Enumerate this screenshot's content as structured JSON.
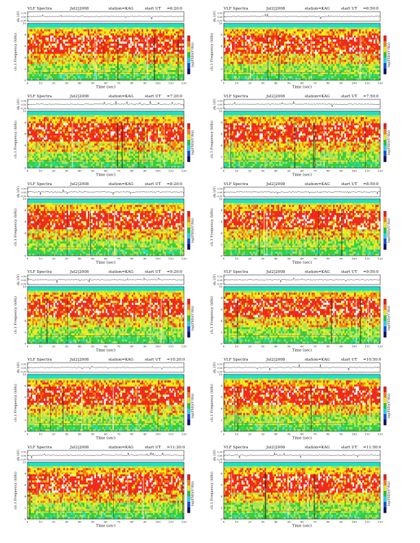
{
  "page": {
    "header_template": {
      "title": "VLF Spectra",
      "date": "Jul2|2008",
      "station": "station=KAG",
      "start_prefix": "start  UT"
    },
    "xlabel": "Time  (sec)",
    "ylabel_trace": "ch.1(V)",
    "ylabel_spec": "ch.1 Frequency (kHz)",
    "colorbar_label": "log(PSD)(V²/Hz)"
  },
  "palette": {
    "red": "#ee2a1e",
    "orange": "#f77f0f",
    "yellow": "#f3ec1a",
    "lightgreen": "#a6e35a",
    "green": "#37cf3d",
    "cyan": "#1fe0c6",
    "white": "#ffffff",
    "frame": "#222222",
    "trace": "#333333"
  },
  "chart_data": [
    {
      "type": "heatmap",
      "start_ut": "=6:20:0",
      "title": "VLF Spectra  Jul2|2008  station=KAG  start UT =6:20:0",
      "xlabel": "Time (sec)",
      "ylabel": "Frequency (kHz)",
      "xlim": [
        0,
        120
      ],
      "ylim": [
        0,
        10
      ],
      "x_ticks": [
        0,
        10,
        20,
        30,
        40,
        50,
        60,
        70,
        80,
        90,
        100,
        110,
        120
      ],
      "y_ticks": [
        0,
        2,
        4,
        6,
        8,
        10
      ],
      "trace": {
        "ylabel": "ch.1 (V)",
        "y_ticks": [
          "0.30",
          "0.00",
          "-0.30"
        ]
      },
      "colorbar": {
        "label": "log(PSD)(V²/Hz)",
        "colors": [
          "red",
          "orange",
          "yellow",
          "green",
          "cyan",
          "blue",
          "navy"
        ]
      }
    },
    {
      "type": "heatmap",
      "start_ut": "=6:50:0",
      "title": "VLF Spectra  Jul2|2008  station=KAG  start UT =6:50:0",
      "xlabel": "Time (sec)",
      "ylabel": "Frequency (kHz)",
      "xlim": [
        0,
        120
      ],
      "ylim": [
        0,
        10
      ],
      "x_ticks": [
        0,
        10,
        20,
        30,
        40,
        50,
        60,
        70,
        80,
        90,
        100,
        110,
        120
      ],
      "y_ticks": [
        0,
        2,
        4,
        6,
        8,
        10
      ],
      "trace": {
        "ylabel": "ch.1 (V)",
        "y_ticks": [
          "0.30",
          "0.00",
          "-0.30"
        ]
      },
      "colorbar": {
        "label": "log(PSD)(V²/Hz)",
        "colors": [
          "red",
          "orange",
          "yellow",
          "green",
          "cyan",
          "blue",
          "navy"
        ]
      }
    },
    {
      "type": "heatmap",
      "start_ut": "=7:20:0",
      "title": "VLF Spectra  Jul2|2008  station=KAG  start UT =7:20:0",
      "xlabel": "Time (sec)",
      "ylabel": "Frequency (kHz)",
      "xlim": [
        0,
        120
      ],
      "ylim": [
        0,
        10
      ],
      "x_ticks": [
        0,
        10,
        20,
        30,
        40,
        50,
        60,
        70,
        80,
        90,
        100,
        110,
        120
      ],
      "y_ticks": [
        0,
        2,
        4,
        6,
        8,
        10
      ],
      "trace": {
        "ylabel": "ch.1 (V)",
        "y_ticks": [
          "0.30",
          "0.00",
          "-0.30"
        ]
      },
      "colorbar": {
        "label": "log(PSD)(V²/Hz)",
        "colors": [
          "red",
          "orange",
          "yellow",
          "green",
          "cyan",
          "blue",
          "navy"
        ]
      }
    },
    {
      "type": "heatmap",
      "start_ut": "=7:50:0",
      "title": "VLF Spectra  Jul2|2008  station=KAG  start UT =7:50:0",
      "xlabel": "Time (sec)",
      "ylabel": "Frequency (kHz)",
      "xlim": [
        0,
        120
      ],
      "ylim": [
        0,
        10
      ],
      "x_ticks": [
        0,
        10,
        20,
        30,
        40,
        50,
        60,
        70,
        80,
        90,
        100,
        110,
        120
      ],
      "y_ticks": [
        0,
        2,
        4,
        6,
        8,
        10
      ],
      "trace": {
        "ylabel": "ch.1 (V)",
        "y_ticks": [
          "0.30",
          "0.00",
          "-0.30"
        ]
      },
      "colorbar": {
        "label": "log(PSD)(V²/Hz)",
        "colors": [
          "red",
          "orange",
          "yellow",
          "green",
          "cyan",
          "blue",
          "navy"
        ]
      }
    },
    {
      "type": "heatmap",
      "start_ut": "=8:20:0",
      "title": "VLF Spectra  Jul2|2008  station=KAG  start UT =8:20:0",
      "xlabel": "Time (sec)",
      "ylabel": "Frequency (kHz)",
      "xlim": [
        0,
        120
      ],
      "ylim": [
        0,
        10
      ],
      "x_ticks": [
        0,
        10,
        20,
        30,
        40,
        50,
        60,
        70,
        80,
        90,
        100,
        110,
        120
      ],
      "y_ticks": [
        0,
        2,
        4,
        6,
        8,
        10
      ],
      "trace": {
        "ylabel": "ch.1 (V)",
        "y_ticks": [
          "0.30",
          "0.00",
          "-0.30"
        ]
      },
      "colorbar": {
        "label": "log(PSD)(V²/Hz)",
        "colors": [
          "red",
          "orange",
          "yellow",
          "green",
          "cyan",
          "blue",
          "navy"
        ]
      }
    },
    {
      "type": "heatmap",
      "start_ut": "=8:50:0",
      "title": "VLF Spectra  Jul2|2008  station=KAG  start UT =8:50:0",
      "xlabel": "Time (sec)",
      "ylabel": "Frequency (kHz)",
      "xlim": [
        0,
        120
      ],
      "ylim": [
        0,
        10
      ],
      "x_ticks": [
        0,
        10,
        20,
        30,
        40,
        50,
        60,
        70,
        80,
        90,
        100,
        110,
        120
      ],
      "y_ticks": [
        0,
        2,
        4,
        6,
        8,
        10
      ],
      "trace": {
        "ylabel": "ch.1 (V)",
        "y_ticks": [
          "0.30",
          "0.00",
          "-0.30"
        ]
      },
      "colorbar": {
        "label": "log(PSD)(V²/Hz)",
        "colors": [
          "red",
          "orange",
          "yellow",
          "green",
          "cyan",
          "blue",
          "navy"
        ]
      }
    },
    {
      "type": "heatmap",
      "start_ut": "=9:20:0",
      "title": "VLF Spectra  Jul2|2008  station=KAG  start UT =9:20:0",
      "xlabel": "Time (sec)",
      "ylabel": "Frequency (kHz)",
      "xlim": [
        0,
        120
      ],
      "ylim": [
        0,
        10
      ],
      "x_ticks": [
        0,
        10,
        20,
        30,
        40,
        50,
        60,
        70,
        80,
        90,
        100,
        110,
        120
      ],
      "y_ticks": [
        0,
        2,
        4,
        6,
        8,
        10
      ],
      "trace": {
        "ylabel": "ch.1 (V)",
        "y_ticks": [
          "0.30",
          "0.00",
          "-0.30"
        ]
      },
      "colorbar": {
        "label": "log(PSD)(V²/Hz)",
        "colors": [
          "red",
          "orange",
          "yellow",
          "green",
          "cyan",
          "blue",
          "navy"
        ]
      }
    },
    {
      "type": "heatmap",
      "start_ut": "=9:50:0",
      "title": "VLF Spectra  Jul2|2008  station=KAG  start UT =9:50:0",
      "xlabel": "Time (sec)",
      "ylabel": "Frequency (kHz)",
      "xlim": [
        0,
        120
      ],
      "ylim": [
        0,
        10
      ],
      "x_ticks": [
        0,
        10,
        20,
        30,
        40,
        50,
        60,
        70,
        80,
        90,
        100,
        110,
        120
      ],
      "y_ticks": [
        0,
        2,
        4,
        6,
        8,
        10
      ],
      "trace": {
        "ylabel": "ch.1 (V)",
        "y_ticks": [
          "0.30",
          "0.00",
          "-0.30"
        ]
      },
      "colorbar": {
        "label": "log(PSD)(V²/Hz)",
        "colors": [
          "red",
          "orange",
          "yellow",
          "green",
          "cyan",
          "blue",
          "navy"
        ]
      }
    },
    {
      "type": "heatmap",
      "start_ut": "=10:20:0",
      "title": "VLF Spectra  Jul2|2008  station=KAG  start UT =10:20:0",
      "xlabel": "Time (sec)",
      "ylabel": "Frequency (kHz)",
      "xlim": [
        0,
        120
      ],
      "ylim": [
        0,
        10
      ],
      "x_ticks": [
        0,
        10,
        20,
        30,
        40,
        50,
        60,
        70,
        80,
        90,
        100,
        110,
        120
      ],
      "y_ticks": [
        0,
        2,
        4,
        6,
        8,
        10
      ],
      "trace": {
        "ylabel": "ch.1 (V)",
        "y_ticks": [
          "0.30",
          "0.00",
          "-0.30"
        ]
      },
      "colorbar": {
        "label": "log(PSD)(V²/Hz)",
        "colors": [
          "red",
          "orange",
          "yellow",
          "green",
          "cyan",
          "blue",
          "navy"
        ]
      }
    },
    {
      "type": "heatmap",
      "start_ut": "=10:50:0",
      "title": "VLF Spectra  Jul2|2008  station=KAG  start UT =10:50:0",
      "xlabel": "Time (sec)",
      "ylabel": "Frequency (kHz)",
      "xlim": [
        0,
        120
      ],
      "ylim": [
        0,
        10
      ],
      "x_ticks": [
        0,
        10,
        20,
        30,
        40,
        50,
        60,
        70,
        80,
        90,
        100,
        110,
        120
      ],
      "y_ticks": [
        0,
        2,
        4,
        6,
        8,
        10
      ],
      "trace": {
        "ylabel": "ch.1 (V)",
        "y_ticks": [
          "0.30",
          "0.00",
          "-0.30"
        ]
      },
      "colorbar": {
        "label": "log(PSD)(V²/Hz)",
        "colors": [
          "red",
          "orange",
          "yellow",
          "green",
          "cyan",
          "blue",
          "navy"
        ]
      }
    },
    {
      "type": "heatmap",
      "start_ut": "=11:20:0",
      "title": "VLF Spectra  Jul2|2008  station=KAG  start UT =11:20:0",
      "xlabel": "Time (sec)",
      "ylabel": "Frequency (kHz)",
      "xlim": [
        0,
        120
      ],
      "ylim": [
        0,
        10
      ],
      "x_ticks": [
        0,
        10,
        20,
        30,
        40,
        50,
        60,
        70,
        80,
        90,
        100,
        110,
        120
      ],
      "y_ticks": [
        0,
        2,
        4,
        6,
        8,
        10
      ],
      "trace": {
        "ylabel": "ch.1 (V)",
        "y_ticks": [
          "0.30",
          "0.00",
          "-0.30"
        ]
      },
      "colorbar": {
        "label": "log(PSD)(V²/Hz)",
        "colors": [
          "red",
          "orange",
          "yellow",
          "green",
          "cyan",
          "blue",
          "navy"
        ]
      }
    },
    {
      "type": "heatmap",
      "start_ut": "=11:50:0",
      "title": "VLF Spectra  Jul2|2008  station=KAG  start UT =11:50:0",
      "xlabel": "Time (sec)",
      "ylabel": "Frequency (kHz)",
      "xlim": [
        0,
        120
      ],
      "ylim": [
        0,
        10
      ],
      "x_ticks": [
        0,
        10,
        20,
        30,
        40,
        50,
        60,
        70,
        80,
        90,
        100,
        110,
        120
      ],
      "y_ticks": [
        0,
        2,
        4,
        6,
        8,
        10
      ],
      "trace": {
        "ylabel": "ch.1 (V)",
        "y_ticks": [
          "0.30",
          "0.00",
          "-0.30"
        ]
      },
      "colorbar": {
        "label": "log(PSD)(V²/Hz)",
        "colors": [
          "red",
          "orange",
          "yellow",
          "green",
          "cyan",
          "blue",
          "navy"
        ]
      }
    }
  ]
}
